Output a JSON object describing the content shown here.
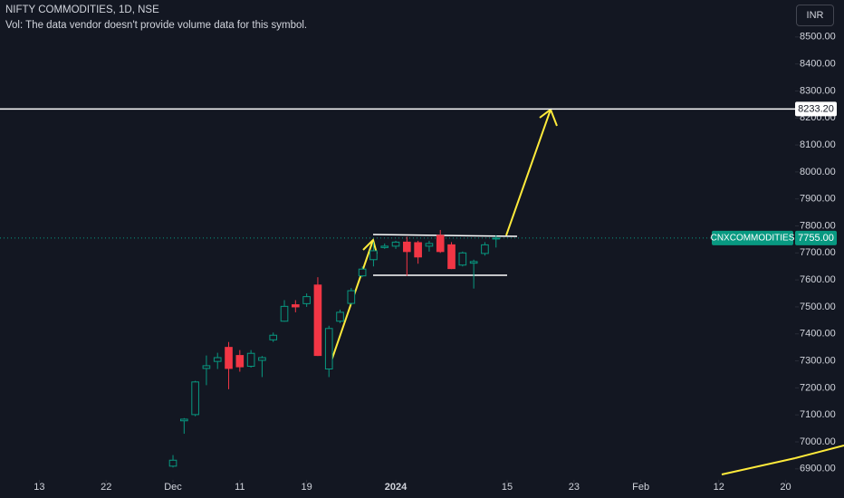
{
  "chart_data": {
    "type": "candlestick",
    "title": "NIFTY COMMODITIES, 1D, NSE",
    "subtitle": "Vol: The data vendor doesn't provide volume data for this symbol.",
    "currency": "INR",
    "up_color": "#089981",
    "down_color": "#f23645",
    "open": [
      6910,
      7078,
      7101,
      7272,
      7298,
      7350,
      7320,
      7280,
      7302,
      7378,
      7447,
      7508,
      7512,
      7581,
      7270,
      7447,
      7513,
      7615,
      7675,
      7720,
      7725,
      7740,
      7738,
      7725,
      7765,
      7730,
      7655,
      7662,
      7698,
      7752
    ],
    "high": [
      6951,
      7088,
      7226,
      7320,
      7330,
      7370,
      7340,
      7340,
      7318,
      7405,
      7525,
      7525,
      7550,
      7610,
      7430,
      7490,
      7570,
      7650,
      7740,
      7735,
      7745,
      7760,
      7745,
      7745,
      7785,
      7740,
      7705,
      7675,
      7740,
      7765
    ],
    "low": [
      6905,
      7030,
      7095,
      7210,
      7270,
      7195,
      7260,
      7275,
      7240,
      7370,
      7445,
      7480,
      7500,
      7318,
      7240,
      7440,
      7508,
      7610,
      7650,
      7715,
      7715,
      7615,
      7660,
      7705,
      7700,
      7640,
      7650,
      7568,
      7690,
      7720
    ],
    "close": [
      6932,
      7084,
      7222,
      7282,
      7312,
      7272,
      7278,
      7328,
      7312,
      7395,
      7502,
      7500,
      7538,
      7320,
      7420,
      7480,
      7560,
      7640,
      7708,
      7725,
      7740,
      7705,
      7685,
      7735,
      7705,
      7642,
      7700,
      7668,
      7730,
      7755
    ],
    "ylim": [
      6792,
      8637
    ],
    "yticks": [
      {
        "value": 6900,
        "label": "6900.00"
      },
      {
        "value": 7000,
        "label": "7000.00"
      },
      {
        "value": 7100,
        "label": "7100.00"
      },
      {
        "value": 7200,
        "label": "7200.00"
      },
      {
        "value": 7300,
        "label": "7300.00"
      },
      {
        "value": 7400,
        "label": "7400.00"
      },
      {
        "value": 7500,
        "label": "7500.00"
      },
      {
        "value": 7600,
        "label": "7600.00"
      },
      {
        "value": 7700,
        "label": "7700.00"
      },
      {
        "value": 7800,
        "label": "7800.00"
      },
      {
        "value": 7900,
        "label": "7900.00"
      },
      {
        "value": 8000,
        "label": "8000.00"
      },
      {
        "value": 8100,
        "label": "8100.00"
      },
      {
        "value": 8200,
        "label": "8200.00"
      },
      {
        "value": 8300,
        "label": "8300.00"
      },
      {
        "value": 8400,
        "label": "8400.00"
      },
      {
        "value": 8500,
        "label": "8500.00"
      }
    ],
    "xlim": [
      -15.53,
      55.85
    ],
    "xticks": [
      {
        "value": -12,
        "label": "13"
      },
      {
        "value": -6,
        "label": "22"
      },
      {
        "value": 0,
        "label": "Dec"
      },
      {
        "value": 6,
        "label": "11"
      },
      {
        "value": 12,
        "label": "19"
      },
      {
        "value": 20,
        "label": "2024"
      },
      {
        "value": 30,
        "label": "15"
      },
      {
        "value": 36,
        "label": "23"
      },
      {
        "value": 42,
        "label": "Feb"
      },
      {
        "value": 49,
        "label": "12"
      },
      {
        "value": 55,
        "label": "20"
      }
    ],
    "horizontal_line": {
      "value": 8233.2,
      "label": "8233.20"
    },
    "last_price": {
      "name": "CNXCOMMODITIES",
      "value": 7755,
      "label": "7755.00"
    }
  }
}
